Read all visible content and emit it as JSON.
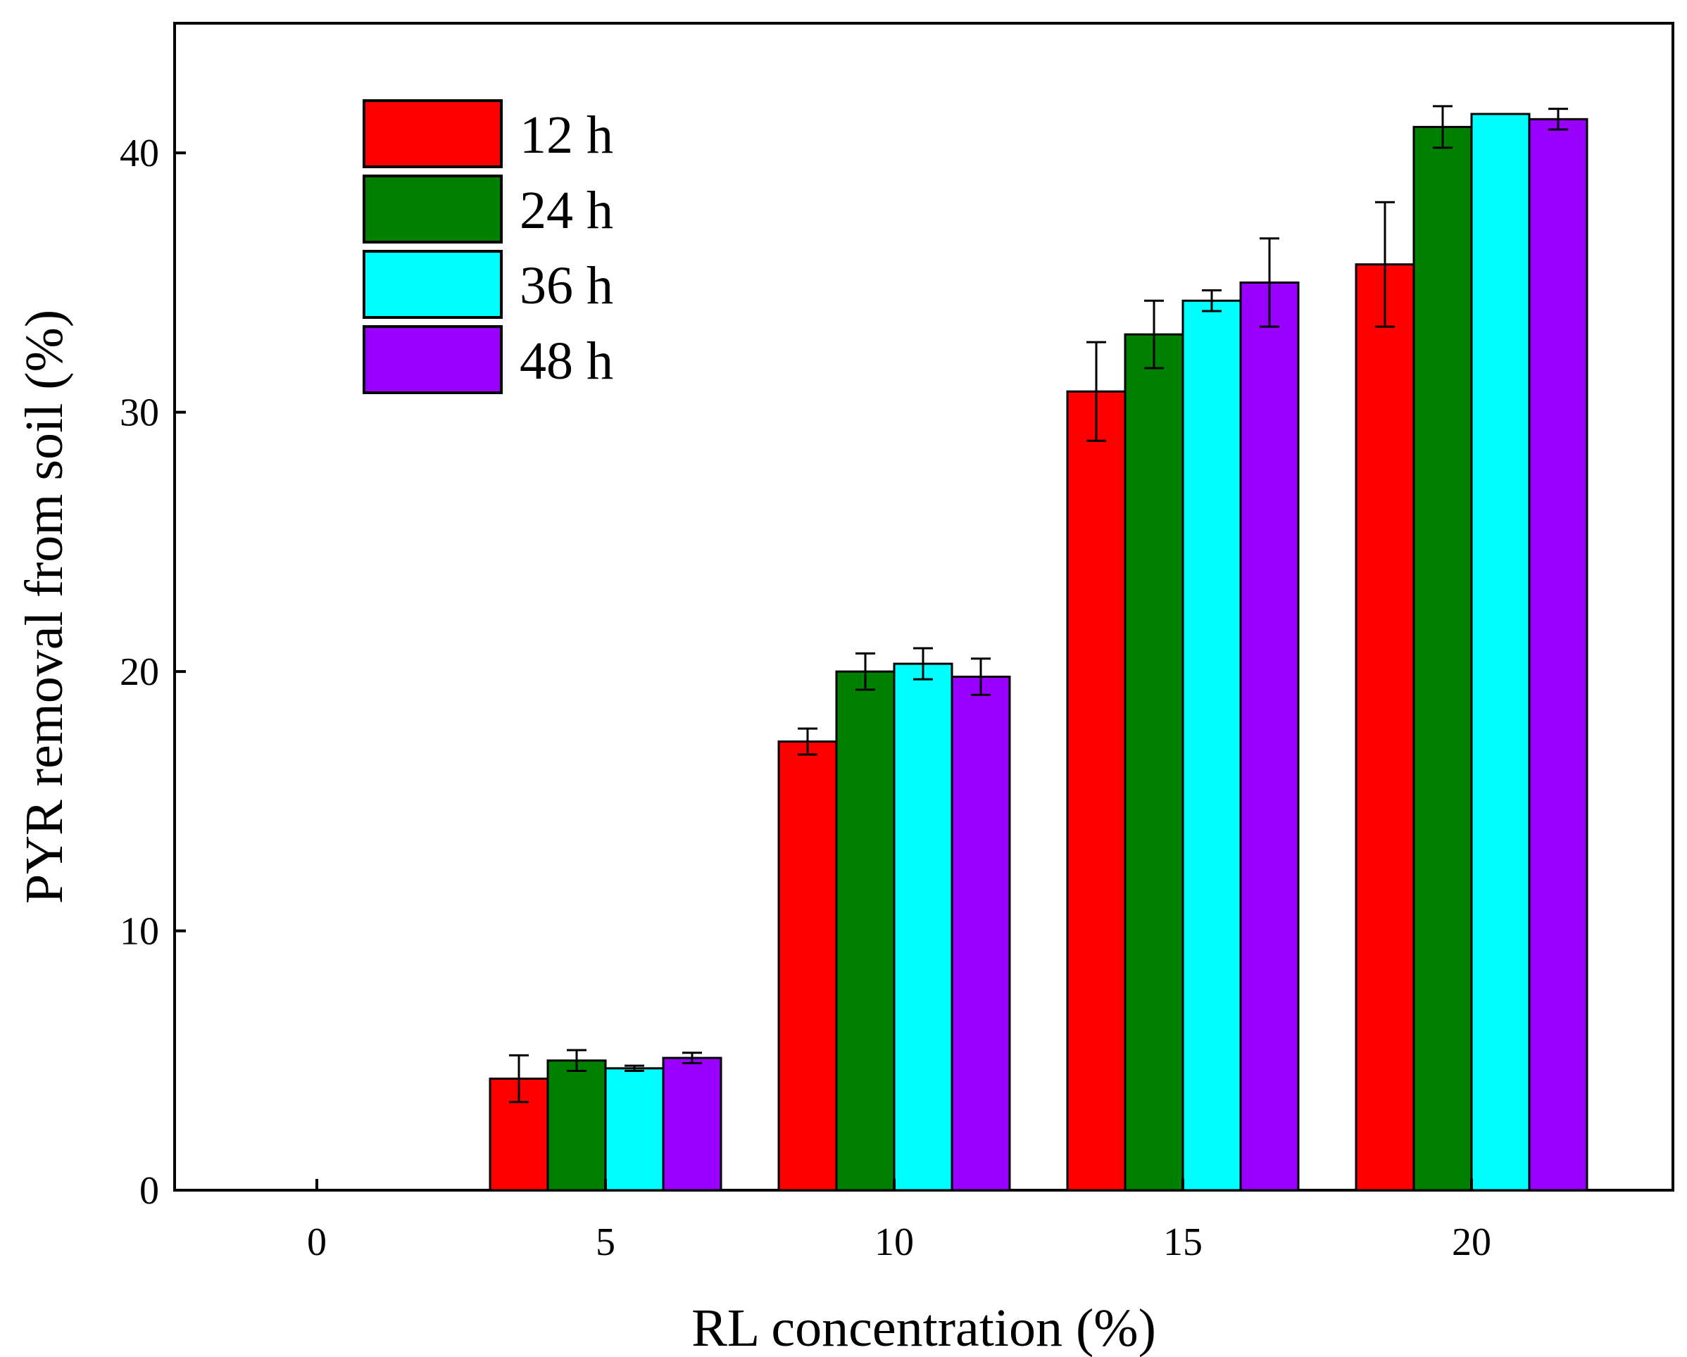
{
  "chart_data": {
    "type": "bar",
    "title": "",
    "xlabel": "RL concentration (%)",
    "ylabel": "PYR removal from soil (%)",
    "categories": [
      "0",
      "5",
      "10",
      "15",
      "20"
    ],
    "ylim": [
      0,
      45
    ],
    "yticks": [
      "0",
      "10",
      "20",
      "30",
      "40"
    ],
    "grid": false,
    "legend_position": "top-left",
    "series": [
      {
        "name": "12 h",
        "color": "#ff0000",
        "values": [
          0,
          4.3,
          17.3,
          30.8,
          35.7
        ],
        "errors": [
          0,
          0.9,
          0.5,
          1.9,
          2.4
        ]
      },
      {
        "name": "24 h",
        "color": "#008000",
        "values": [
          0,
          5.0,
          20.0,
          33.0,
          41.0
        ],
        "errors": [
          0,
          0.4,
          0.7,
          1.3,
          0.8
        ]
      },
      {
        "name": "36 h",
        "color": "#00ffff",
        "values": [
          0,
          4.7,
          20.3,
          34.3,
          41.5
        ],
        "errors": [
          0,
          0.1,
          0.6,
          0.4,
          0.0
        ]
      },
      {
        "name": "48 h",
        "color": "#9900ff",
        "values": [
          0,
          5.1,
          19.8,
          35.0,
          41.3
        ],
        "errors": [
          0,
          0.2,
          0.7,
          1.7,
          0.4
        ]
      }
    ]
  }
}
